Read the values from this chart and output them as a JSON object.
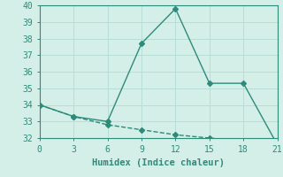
{
  "xlabel": "Humidex (Indice chaleur)",
  "x": [
    0,
    3,
    6,
    9,
    12,
    15,
    18,
    21
  ],
  "line1_y": [
    34,
    33.3,
    33.0,
    37.7,
    39.8,
    35.3,
    35.3,
    31.6
  ],
  "line2_y": [
    34,
    33.3,
    32.8,
    32.5,
    32.2,
    32.0,
    31.8,
    31.6
  ],
  "line_color": "#2e8b7a",
  "bg_color": "#d4eee8",
  "grid_color": "#b8ddd6",
  "xlim": [
    0,
    21
  ],
  "ylim": [
    32,
    40
  ],
  "xticks": [
    0,
    3,
    6,
    9,
    12,
    15,
    18,
    21
  ],
  "yticks": [
    32,
    33,
    34,
    35,
    36,
    37,
    38,
    39,
    40
  ],
  "marker": "D",
  "marker_size": 3,
  "linewidth": 1.0,
  "tick_fontsize": 7,
  "xlabel_fontsize": 7.5
}
